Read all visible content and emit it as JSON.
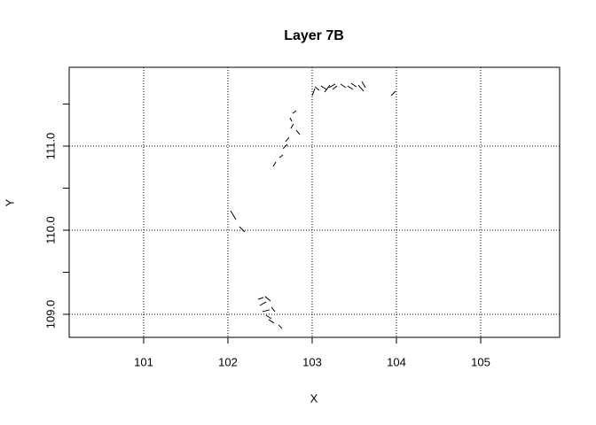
{
  "chart_data": {
    "type": "segments",
    "title": "Layer 7B",
    "x_label": "X",
    "y_label": "Y",
    "color": "#000000",
    "x0": [
      102.358,
      102.442,
      102.379,
      102.411,
      102.453,
      102.484,
      102.6,
      102.516,
      102.032,
      102.137,
      102.537,
      102.611,
      102.653,
      102.684,
      102.747,
      102.811,
      102.768,
      102.737,
      103.0,
      103.032,
      103.105,
      103.147,
      103.2,
      103.242,
      103.337,
      103.421,
      103.463,
      103.547,
      103.589,
      103.937
    ],
    "y0": [
      109.179,
      109.211,
      109.105,
      109.032,
      108.989,
      108.937,
      108.874,
      109.084,
      110.232,
      110.042,
      110.758,
      110.863,
      110.968,
      111.053,
      111.211,
      111.189,
      111.389,
      111.337,
      111.6,
      111.705,
      111.716,
      111.642,
      111.695,
      111.674,
      111.737,
      111.716,
      111.747,
      111.726,
      111.768,
      111.6
    ],
    "x1": [
      102.421,
      102.505,
      102.453,
      102.495,
      102.516,
      102.547,
      102.642,
      102.558,
      102.095,
      102.2,
      102.568,
      102.653,
      102.705,
      102.726,
      102.779,
      102.853,
      102.811,
      102.758,
      103.032,
      103.084,
      103.168,
      103.211,
      103.274,
      103.295,
      103.4,
      103.484,
      103.526,
      103.611,
      103.632,
      103.989
    ],
    "y1": [
      109.2,
      109.158,
      109.147,
      109.053,
      108.947,
      108.895,
      108.832,
      109.032,
      110.126,
      109.979,
      110.811,
      110.895,
      111.021,
      111.105,
      111.263,
      111.137,
      111.421,
      111.295,
      111.684,
      111.663,
      111.674,
      111.726,
      111.737,
      111.716,
      111.695,
      111.674,
      111.705,
      111.653,
      111.695,
      111.653
    ],
    "xlim": [
      100.116,
      105.937
    ],
    "ylim": [
      108.726,
      111.937
    ],
    "xticks": [
      101,
      102,
      103,
      104,
      105
    ],
    "yticks": [
      {
        "value": 109,
        "label": "109.0"
      },
      {
        "value": 109.5,
        "label": null
      },
      {
        "value": 110,
        "label": "110.0"
      },
      {
        "value": 110.5,
        "label": null
      },
      {
        "value": 111,
        "label": "111.0"
      },
      {
        "value": 111.5,
        "label": null
      }
    ],
    "grid": true
  }
}
